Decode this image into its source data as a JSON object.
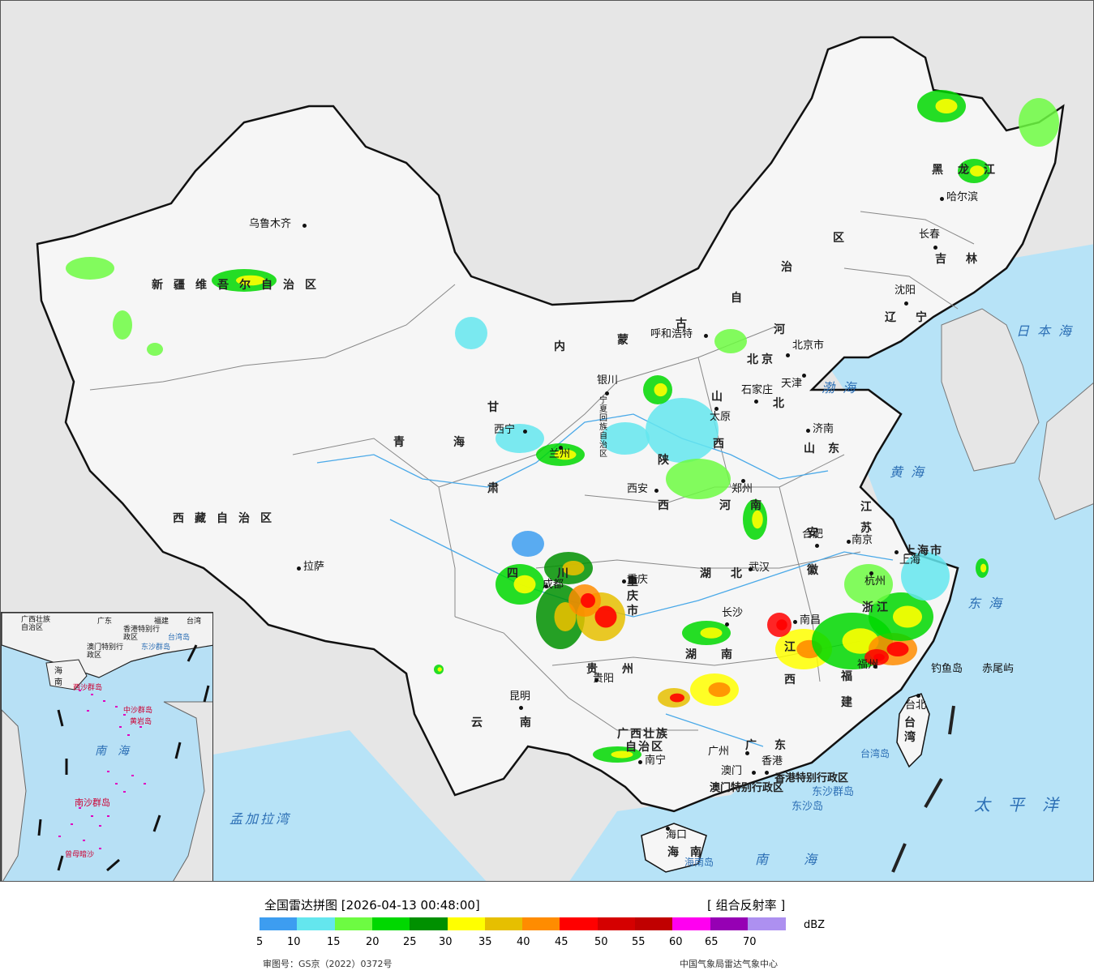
{
  "title": "全国雷达拼图 [2026-04-13 00:48:00]",
  "product": "[ 组合反射率 ]",
  "unit": "dBZ",
  "legend": {
    "ticks": [
      "5",
      "10",
      "15",
      "20",
      "25",
      "30",
      "35",
      "40",
      "45",
      "50",
      "55",
      "60",
      "65",
      "70"
    ],
    "colors": [
      "#3d9df0",
      "#64e6ee",
      "#6dfb42",
      "#00d800",
      "#009000",
      "#ffff00",
      "#e6bf00",
      "#ff8c00",
      "#ff0000",
      "#d50000",
      "#c00000",
      "#ff00f0",
      "#9600b4",
      "#ad90f0"
    ]
  },
  "footer": {
    "approval": "审图号：GS京（2022）0372号",
    "agency": "中国气象局雷达气象中心"
  },
  "provinces": {
    "xinjiang": "新疆维吾尔自治区",
    "xizang": "西藏自治区",
    "qinghai": "青海",
    "gansu": "甘肃",
    "neimenggu_1": "内",
    "neimenggu_2": "蒙",
    "neimenggu_3": "古",
    "neimenggu_4": "自",
    "neimenggu_5": "治",
    "neimenggu_6": "区",
    "heilongjiang": "黑龙江",
    "jilin": "吉林",
    "liaoning": "辽宁",
    "hebei_1": "河",
    "hebei_2": "北",
    "shanxi_1": "山",
    "shanxi_2": "西",
    "shaanxi_1": "陕",
    "shaanxi_2": "西",
    "ningxia": "宁夏回族自治区",
    "shandong": "山东",
    "henan": "河南",
    "jiangsu": "江苏",
    "anhui": "安徽",
    "shanghai": "上海市",
    "zhejiang": "浙江",
    "hubei": "湖北",
    "sichuan": "四川",
    "chongqing": "重庆市",
    "guizhou": "贵州",
    "hunan": "湖南",
    "jiangxi": "江西",
    "fujian": "福建",
    "yunnan": "云南",
    "guangxi_1": "广西壮族",
    "guangxi_2": "自治区",
    "guangdong": "广东",
    "hainan": "海南",
    "taiwan": "台湾",
    "hk": "香港特别行政区",
    "macao": "澳门特别行政区",
    "beijing": "北京",
    "tianjin": "天津"
  },
  "cities": {
    "urumqi": "乌鲁木齐",
    "lhasa": "拉萨",
    "xining": "西宁",
    "lanzhou": "兰州",
    "yinchuan": "银川",
    "hohhot": "呼和浩特",
    "beijing": "北京市",
    "tianjin": "天津",
    "shijiazhuang": "石家庄",
    "taiyuan": "太原",
    "jinan": "济南",
    "zhengzhou": "郑州",
    "xian": "西安",
    "hefei": "合肥",
    "nanjing": "南京",
    "shanghai": "上海",
    "hangzhou": "杭州",
    "wuhan": "武汉",
    "chengdu": "成都",
    "chongqing": "重庆",
    "guiyang": "贵阳",
    "changsha": "长沙",
    "nanchang": "南昌",
    "fuzhou": "福州",
    "kunming": "昆明",
    "nanning": "南宁",
    "guangzhou": "广州",
    "hongkong": "香港",
    "macao": "澳门",
    "haikou": "海口",
    "taibei": "台北",
    "harbin": "哈尔滨",
    "changchun": "长春",
    "shenyang": "沈阳"
  },
  "islands": {
    "diaoyu": "钓鱼岛",
    "chiwei": "赤尾屿",
    "dongsha_islands": "东沙群岛",
    "dongsha_island": "东沙岛",
    "hainan_island": "海南岛",
    "taiwan_island": "台湾岛"
  },
  "seas": {
    "japan": "日本海",
    "bohai": "渤海",
    "yellow": "黄海",
    "east": "东海",
    "pacific": "太平洋",
    "south": "南海",
    "bengal": "孟加拉湾"
  },
  "inset": {
    "guangxi": "广西壮族自治区",
    "guangdong": "广东",
    "fujian": "福建",
    "taiwan": "台湾",
    "hk": "香港特别行政区",
    "macao": "澳门特别行政区",
    "taiwan_island": "台湾岛",
    "dongsha": "东沙群岛",
    "hainan": "海南",
    "xisha": "西沙群岛",
    "zhongsha": "中沙群岛",
    "huangyan": "黄岩岛",
    "sea": "南海",
    "nansha": "南沙群岛",
    "zengmu": "曾母暗沙"
  },
  "icons": [
    "city-dot-icon",
    "capital-star-icon"
  ]
}
